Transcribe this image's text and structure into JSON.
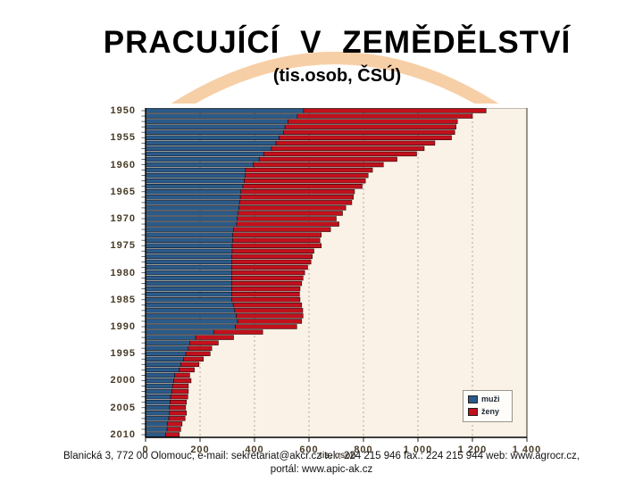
{
  "slide": {
    "title": "PRACUJÍCÍ V ZEMĚDĚLSTVÍ",
    "subtitle": "(tis.osob, ČSÚ)",
    "accent_arc_color": "#f7cfa6",
    "footer_line1": "Blanická 3, 772 00 Olomouc, e-mail: sekretariat@akcr.cz tel.: 224 215 946 fax.: 224 215 944 web: www.agrocr.cz,",
    "footer_line2": "portál: www.apic-ak.cz"
  },
  "chart_data": {
    "type": "bar",
    "orientation": "horizontal-stacked",
    "title": "PRACUJÍCÍ V ZEMĚDĚLSTVÍ (tis.osob, ČSÚ)",
    "xlabel": "tis. osob",
    "ylabel": "",
    "xlim": [
      0,
      1400
    ],
    "x_tick_step": 200,
    "x_tick_labels": [
      "0",
      "200",
      "400",
      "600",
      "800",
      "1 000",
      "1 200",
      "1 400"
    ],
    "y_tick_years": [
      1950,
      1955,
      1960,
      1965,
      1970,
      1975,
      1980,
      1985,
      1990,
      1995,
      2000,
      2005,
      2010
    ],
    "grid": true,
    "legend_position": "inside-bottom-right",
    "plot_bg": "#faf2e6",
    "gridline_color": "#b3a897",
    "categories": [
      1950,
      1951,
      1952,
      1953,
      1954,
      1955,
      1956,
      1957,
      1958,
      1959,
      1960,
      1961,
      1962,
      1963,
      1964,
      1965,
      1966,
      1967,
      1968,
      1969,
      1970,
      1971,
      1972,
      1973,
      1974,
      1975,
      1976,
      1977,
      1978,
      1979,
      1980,
      1981,
      1982,
      1983,
      1984,
      1985,
      1986,
      1987,
      1988,
      1989,
      1990,
      1991,
      1992,
      1993,
      1994,
      1995,
      1996,
      1997,
      1998,
      1999,
      2000,
      2001,
      2002,
      2003,
      2004,
      2005,
      2006,
      2007,
      2008,
      2009,
      2010
    ],
    "series": [
      {
        "name": "muži",
        "color": "#2b5a88",
        "values": [
          580,
          557,
          523,
          512,
          507,
          490,
          479,
          462,
          435,
          417,
          395,
          367,
          365,
          362,
          357,
          350,
          348,
          345,
          343,
          340,
          337,
          334,
          323,
          320,
          320,
          318,
          318,
          317,
          317,
          317,
          317,
          317,
          317,
          316,
          316,
          317,
          322,
          327,
          333,
          338,
          330,
          250,
          184,
          162,
          157,
          148,
          140,
          129,
          123,
          107,
          103,
          99,
          96,
          92,
          90,
          88,
          88,
          85,
          81,
          79,
          73
        ]
      },
      {
        "name": "ženy",
        "color": "#c2101c",
        "values": [
          670,
          643,
          622,
          628,
          628,
          633,
          583,
          561,
          560,
          506,
          478,
          466,
          452,
          445,
          438,
          417,
          415,
          412,
          392,
          383,
          363,
          376,
          356,
          325,
          320,
          327,
          300,
          295,
          290,
          278,
          267,
          261,
          256,
          251,
          249,
          250,
          251,
          250,
          245,
          235,
          225,
          180,
          139,
          105,
          86,
          89,
          72,
          67,
          56,
          55,
          64,
          58,
          61,
          63,
          60,
          59,
          62,
          60,
          53,
          50,
          51
        ]
      }
    ]
  }
}
